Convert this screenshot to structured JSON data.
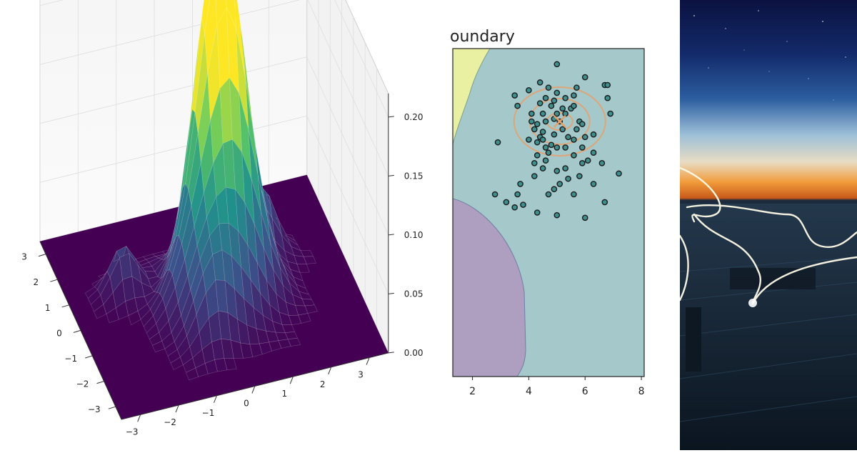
{
  "chart_data": [
    {
      "type": "surface",
      "z_ticks": [
        "0.00",
        "0.05",
        "0.10",
        "0.15",
        "0.20"
      ],
      "x_ticks": [
        "3",
        "2",
        "1",
        "0",
        "−1",
        "−2",
        "−3"
      ],
      "y_ticks": [
        "−3",
        "−2",
        "−1",
        "0",
        "1",
        "2",
        "3"
      ],
      "zlim": [
        0,
        0.22
      ],
      "xlim": [
        -3.5,
        3.5
      ],
      "ylim": [
        -3.5,
        3.5
      ],
      "colormap": "viridis",
      "peaks": [
        {
          "x": 0.4,
          "y": 0.3,
          "z": 0.2
        },
        {
          "x": -0.3,
          "y": 0.1,
          "z": 0.16
        },
        {
          "x": 1.1,
          "y": 1.6,
          "z": 0.05
        },
        {
          "x": -1.6,
          "y": -0.6,
          "z": 0.04
        },
        {
          "x": 0.9,
          "y": -2.1,
          "z": 0.04
        }
      ]
    },
    {
      "type": "scatter",
      "title": "oundary",
      "x_ticks": [
        "2",
        "4",
        "6",
        "8"
      ],
      "xlim": [
        1.3,
        8.1
      ],
      "ylim": [
        -6.2,
        6.4
      ],
      "centroid": {
        "x": 5.1,
        "y": 3.6
      },
      "regions": [
        {
          "name": "yellow",
          "color": "#e9f0a2"
        },
        {
          "name": "teal",
          "color": "#a5c8cb"
        },
        {
          "name": "purple",
          "color": "#ae9ec0"
        }
      ],
      "points": [
        [
          5.0,
          5.8
        ],
        [
          4.4,
          5.1
        ],
        [
          4.7,
          4.9
        ],
        [
          5.0,
          4.7
        ],
        [
          4.9,
          4.4
        ],
        [
          4.6,
          4.5
        ],
        [
          5.7,
          4.9
        ],
        [
          6.0,
          5.3
        ],
        [
          6.7,
          5.0
        ],
        [
          6.8,
          5.0
        ],
        [
          6.8,
          4.5
        ],
        [
          6.9,
          3.9
        ],
        [
          5.5,
          4.1
        ],
        [
          5.3,
          4.5
        ],
        [
          5.6,
          4.2
        ],
        [
          5.3,
          3.9
        ],
        [
          5.0,
          3.9
        ],
        [
          4.5,
          3.9
        ],
        [
          4.9,
          3.7
        ],
        [
          5.1,
          3.6
        ],
        [
          4.1,
          3.6
        ],
        [
          4.3,
          3.5
        ],
        [
          4.6,
          3.6
        ],
        [
          5.8,
          3.6
        ],
        [
          5.9,
          3.5
        ],
        [
          4.2,
          3.3
        ],
        [
          4.4,
          3.0
        ],
        [
          4.5,
          3.2
        ],
        [
          4.3,
          2.8
        ],
        [
          4.6,
          2.6
        ],
        [
          4.7,
          2.4
        ],
        [
          4.6,
          2.1
        ],
        [
          4.3,
          2.3
        ],
        [
          5.0,
          2.6
        ],
        [
          5.3,
          2.6
        ],
        [
          5.6,
          2.3
        ],
        [
          5.9,
          2.0
        ],
        [
          6.1,
          2.1
        ],
        [
          6.3,
          2.4
        ],
        [
          6.6,
          2.0
        ],
        [
          5.8,
          1.5
        ],
        [
          5.4,
          1.4
        ],
        [
          5.1,
          1.2
        ],
        [
          4.9,
          1.0
        ],
        [
          4.2,
          1.5
        ],
        [
          3.7,
          1.2
        ],
        [
          3.6,
          0.8
        ],
        [
          3.8,
          0.4
        ],
        [
          4.7,
          0.8
        ],
        [
          5.6,
          0.8
        ],
        [
          6.3,
          1.2
        ],
        [
          6.7,
          0.5
        ],
        [
          7.2,
          1.6
        ],
        [
          4.3,
          0.1
        ],
        [
          5.0,
          0.0
        ],
        [
          6.0,
          -0.1
        ],
        [
          2.8,
          0.8
        ],
        [
          3.2,
          0.5
        ],
        [
          3.5,
          0.3
        ],
        [
          2.9,
          2.8
        ],
        [
          3.6,
          4.2
        ],
        [
          3.5,
          4.6
        ],
        [
          4.0,
          4.8
        ],
        [
          5.2,
          4.1
        ],
        [
          5.4,
          3.0
        ],
        [
          5.6,
          2.9
        ],
        [
          5.2,
          3.3
        ],
        [
          4.9,
          3.1
        ],
        [
          4.5,
          2.9
        ],
        [
          4.8,
          2.7
        ],
        [
          4.0,
          2.9
        ],
        [
          4.2,
          2.0
        ],
        [
          4.5,
          1.8
        ],
        [
          5.0,
          1.7
        ],
        [
          5.3,
          1.8
        ],
        [
          5.9,
          2.6
        ],
        [
          6.0,
          3.0
        ],
        [
          5.7,
          3.3
        ],
        [
          6.3,
          3.1
        ],
        [
          4.8,
          4.2
        ],
        [
          5.6,
          4.6
        ],
        [
          4.4,
          4.3
        ],
        [
          4.1,
          3.9
        ]
      ],
      "colors": {
        "points": "#3f8f8f",
        "edges": "#1b1b1b",
        "contours": "#e8a06a",
        "centroid": "#e8a06a"
      }
    }
  ]
}
